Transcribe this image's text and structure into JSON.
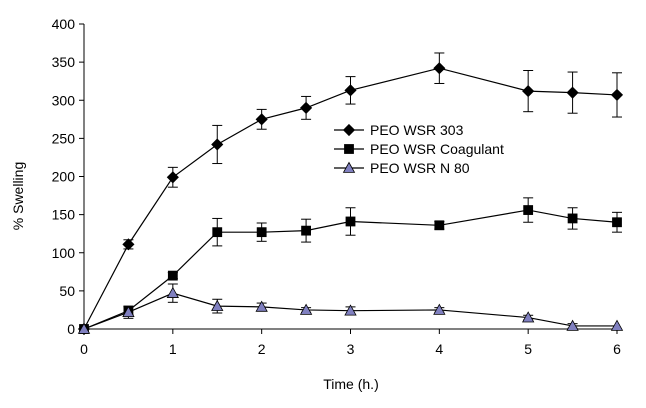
{
  "chart_data": {
    "type": "line",
    "xlabel": "Time (h.)",
    "ylabel": "% Swelling",
    "xlim": [
      0,
      6
    ],
    "ylim": [
      0,
      400
    ],
    "x_ticks": [
      "0",
      "1",
      "2",
      "3",
      "4",
      "5",
      "6"
    ],
    "y_ticks": [
      "0",
      "50",
      "100",
      "150",
      "200",
      "250",
      "300",
      "350",
      "400"
    ],
    "grid": false,
    "legend_position": "center-right",
    "series": [
      {
        "name": "PEO WSR 303",
        "marker": "diamond",
        "color": "#000000",
        "x": [
          0,
          0.5,
          1,
          1.5,
          2,
          2.5,
          3,
          4,
          5,
          5.5,
          6
        ],
        "y": [
          0,
          111,
          199,
          242,
          275,
          290,
          313,
          342,
          312,
          310,
          307
        ],
        "error": [
          0,
          6,
          13,
          25,
          13,
          15,
          18,
          20,
          27,
          27,
          29
        ]
      },
      {
        "name": "PEO WSR Coagulant",
        "marker": "square",
        "color": "#000000",
        "x": [
          0,
          0.5,
          1,
          1.5,
          2,
          2.5,
          3,
          4,
          5,
          5.5,
          6
        ],
        "y": [
          0,
          24,
          70,
          127,
          127,
          129,
          141,
          136,
          156,
          145,
          140
        ],
        "error": [
          0,
          5,
          4,
          18,
          12,
          15,
          18,
          5,
          16,
          14,
          13
        ]
      },
      {
        "name": "PEO WSR N 80",
        "marker": "triangle",
        "color": "#8080c0",
        "x": [
          0,
          0.5,
          1,
          1.5,
          2,
          2.5,
          3,
          4,
          5,
          5.5,
          6
        ],
        "y": [
          0,
          22,
          47,
          30,
          29,
          25,
          24,
          25,
          15,
          4,
          4
        ],
        "error": [
          0,
          8,
          12,
          9,
          5,
          3,
          5,
          3,
          3,
          3,
          0
        ]
      }
    ]
  }
}
